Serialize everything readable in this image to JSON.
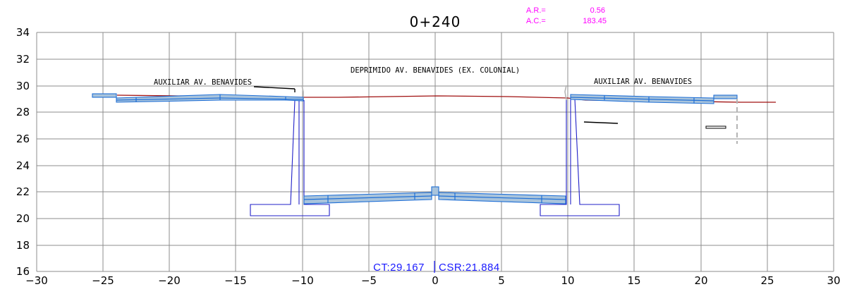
{
  "station": "0+240",
  "area": {
    "ar_label": "A.R.=",
    "ar_value": "0.56",
    "ac_label": "A.C.=",
    "ac_value": "183.45"
  },
  "labels": {
    "left_road": "AUXILIAR AV. BENAVIDES",
    "center_road": "DEPRIMIDO AV. BENAVIDES (EX. COLONIAL)",
    "right_road": "AUXILIAR AV. BENAVIDES"
  },
  "bottom_text": {
    "ct": "CT:29.167",
    "csr": "CSR:21.884"
  },
  "axes": {
    "x_ticks": [
      "−30",
      "−25",
      "−20",
      "−15",
      "−10",
      "−5",
      "0",
      "5",
      "10",
      "15",
      "20",
      "25",
      "30"
    ],
    "y_ticks": [
      "16",
      "18",
      "20",
      "22",
      "24",
      "26",
      "28",
      "30",
      "32",
      "34"
    ],
    "xlim": [
      -30,
      30
    ],
    "ylim": [
      16,
      34
    ]
  },
  "colors": {
    "grid": "#8c8c8c",
    "ground": "#a01010",
    "structure": "#2020c8",
    "pavement_fill": "#a9c4dc",
    "pavement_edge": "#1f6fd6",
    "area_text": "#ff00ff",
    "bottom_text": "#1a1aff"
  }
}
